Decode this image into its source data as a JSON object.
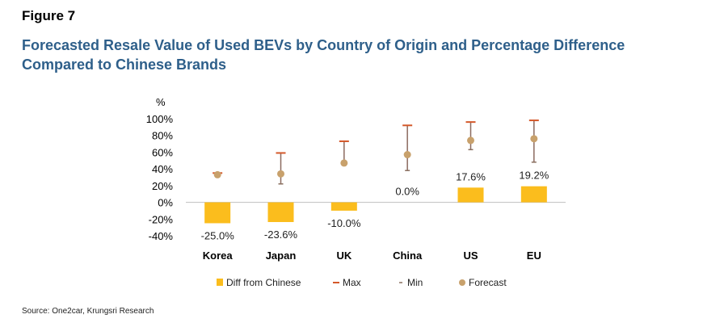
{
  "figure_label": "Figure 7",
  "title": "Forecasted Resale Value of Used BEVs by Country of Origin and Percentage Difference Compared to Chinese Brands",
  "source": "Source: One2car, Krungsri Research",
  "colors": {
    "bar": "#fbbd1d",
    "max": "#d4582a",
    "min": "#8a7060",
    "forecast": "#c8a16c",
    "whisker": "#8b6a5f",
    "title": "#2e5f8a"
  },
  "chart_data": {
    "type": "bar",
    "ylabel": "%",
    "ylim": [
      -40,
      100
    ],
    "yticks": [
      "100%",
      "80%",
      "60%",
      "40%",
      "20%",
      "0%",
      "-20%",
      "-40%"
    ],
    "categories": [
      "Korea",
      "Japan",
      "UK",
      "China",
      "US",
      "EU"
    ],
    "series": [
      {
        "name": "Diff from Chinese",
        "values": [
          -25.0,
          -23.6,
          -10.0,
          0.0,
          17.6,
          19.2
        ],
        "labels": [
          "-25.0%",
          "-23.6%",
          "-10.0%",
          "0.0%",
          "17.6%",
          "19.2%"
        ]
      },
      {
        "name": "Max",
        "values": [
          35,
          59,
          73,
          92,
          96,
          98
        ]
      },
      {
        "name": "Min",
        "values": [
          32,
          22,
          46,
          38,
          63,
          48
        ]
      },
      {
        "name": "Forecast",
        "values": [
          33,
          34,
          47,
          57,
          74,
          76
        ]
      }
    ],
    "legend": [
      "Diff from Chinese",
      "Max",
      "Min",
      "Forecast"
    ]
  }
}
